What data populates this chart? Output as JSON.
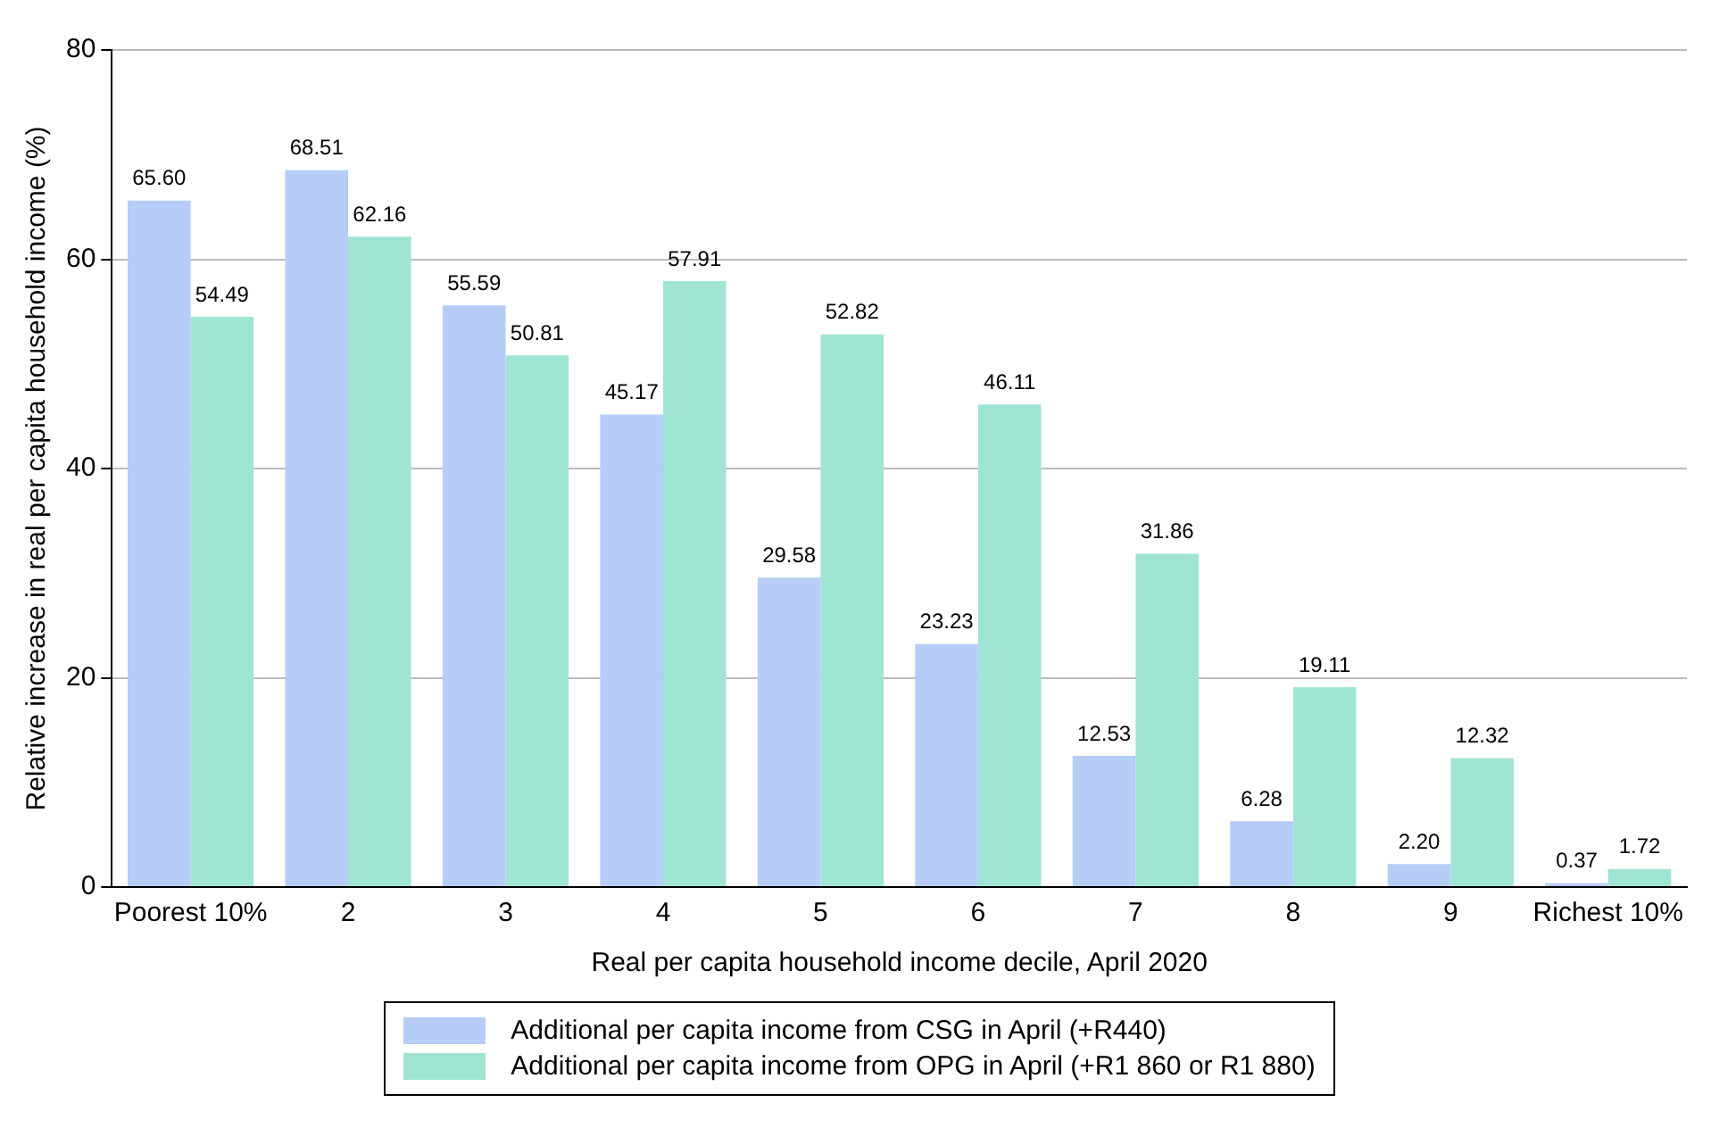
{
  "chart_data": {
    "type": "bar",
    "xlabel": "Real per capita household income decile, April 2020",
    "ylabel": "Relative increase in real per capita household income (%)",
    "categories": [
      "Poorest 10%",
      "2",
      "3",
      "4",
      "5",
      "6",
      "7",
      "8",
      "9",
      "Richest 10%"
    ],
    "series": [
      {
        "name": "Additional per capita income from CSG in April (+R440)",
        "color": "#b5cdf7",
        "values": [
          65.6,
          68.51,
          55.59,
          45.17,
          29.58,
          23.23,
          12.53,
          6.28,
          2.2,
          0.37
        ],
        "value_labels": [
          "65.60",
          "68.51",
          "55.59",
          "45.17",
          "29.58",
          "23.23",
          "12.53",
          "6.28",
          "2.20",
          "0.37"
        ]
      },
      {
        "name": "Additional per capita income from OPG in April (+R1 860 or R1 880)",
        "color": "#a0e5d4",
        "values": [
          54.49,
          62.16,
          50.81,
          57.91,
          52.82,
          46.11,
          31.86,
          19.11,
          12.32,
          1.72
        ],
        "value_labels": [
          "54.49",
          "62.16",
          "50.81",
          "57.91",
          "52.82",
          "46.11",
          "31.86",
          "19.11",
          "12.32",
          "1.72"
        ]
      }
    ],
    "ylim": [
      0,
      80
    ],
    "yticks": [
      0,
      20,
      40,
      60,
      80
    ],
    "grid": "y",
    "legend": "bottom"
  }
}
